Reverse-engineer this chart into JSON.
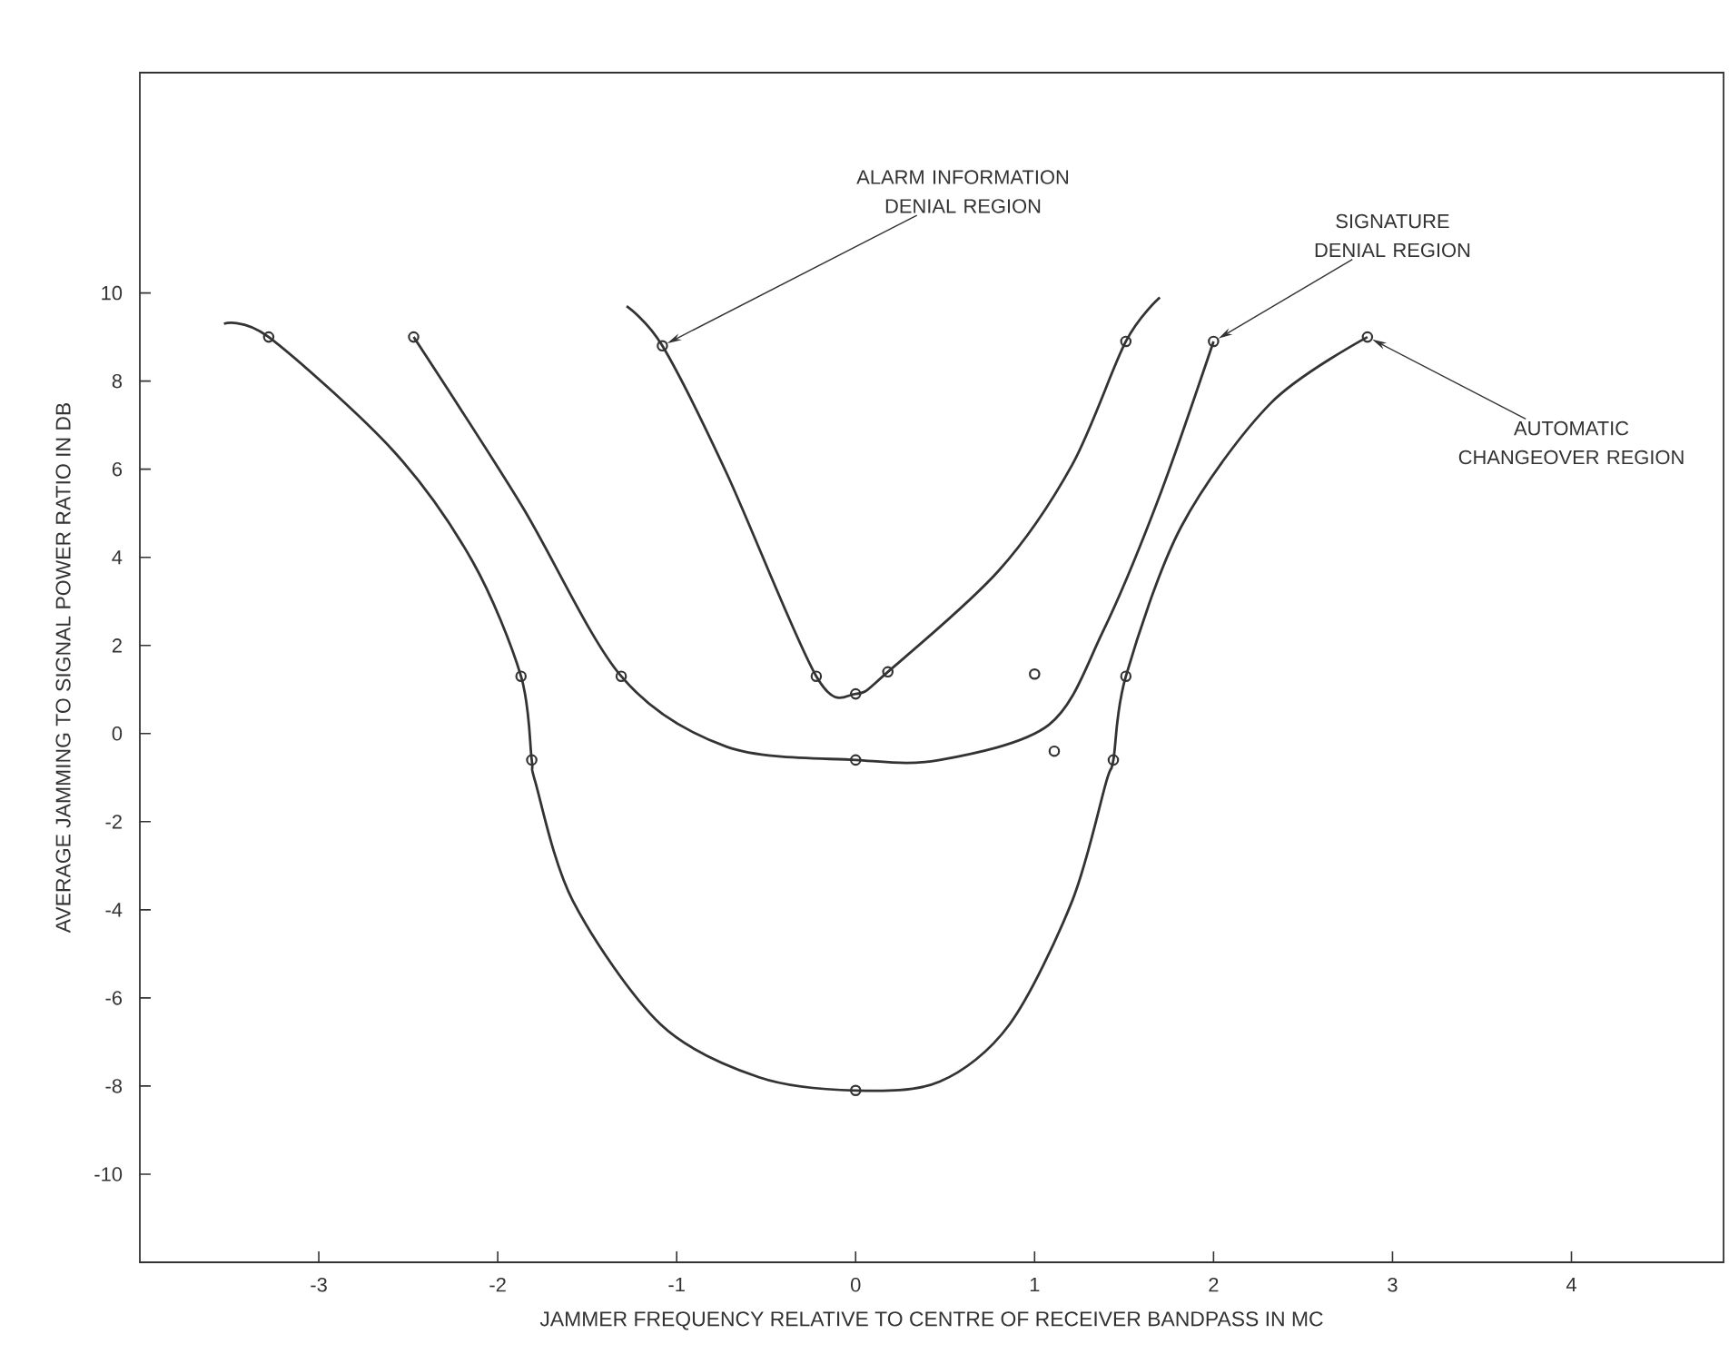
{
  "chart_data": {
    "type": "line",
    "xlabel": "JAMMER FREQUENCY RELATIVE TO CENTRE OF RECEIVER BANDPASS IN MC",
    "ylabel": "AVERAGE JAMMING TO SIGNAL POWER RATIO IN DB",
    "xlim": [
      -4,
      4.85
    ],
    "ylim": [
      -12,
      15
    ],
    "xticks": [
      -3,
      -2,
      -1,
      0,
      1,
      2,
      3,
      4
    ],
    "yticks": [
      -10,
      -8,
      -6,
      -4,
      -2,
      0,
      2,
      4,
      6,
      8,
      10
    ],
    "series": [
      {
        "color": "#333333",
        "marker": "none",
        "x": [
          -1.28,
          -1.08,
          -0.72,
          -0.22,
          0,
          0.18,
          0.8,
          1.21,
          1.51,
          1.7
        ],
        "values": [
          9.7,
          8.8,
          5.9,
          1.3,
          0.9,
          1.4,
          3.7,
          6.1,
          8.9,
          9.9
        ]
      },
      {
        "color": "#333333",
        "marker": "none",
        "x": [
          -2.47,
          -1.87,
          -1.31,
          -0.72,
          0,
          0.47,
          1.08,
          1.38,
          1.69,
          2.0
        ],
        "values": [
          9.0,
          5.2,
          1.3,
          -0.3,
          -0.6,
          -0.6,
          0.2,
          2.3,
          5.3,
          8.9
        ]
      },
      {
        "color": "#333333",
        "marker": "none",
        "x": [
          -3.53,
          -3.28,
          -2.58,
          -2.14,
          -1.87,
          -1.81,
          -1.79,
          -1.58,
          -1.09,
          -0.54,
          0,
          0.47,
          0.86,
          1.21,
          1.4,
          1.44,
          1.51,
          1.82,
          2.32,
          2.86
        ],
        "values": [
          9.3,
          9.0,
          6.4,
          3.9,
          1.3,
          -0.6,
          -1.1,
          -3.8,
          -6.6,
          -7.8,
          -8.1,
          -7.9,
          -6.6,
          -3.8,
          -1.1,
          -0.6,
          1.3,
          4.7,
          7.5,
          9.0
        ]
      },
      {
        "type": "scatter",
        "color": "#333333",
        "marker": "circle",
        "x": [
          -3.28,
          -2.47,
          -1.08,
          -1.87,
          -1.31,
          -0.22,
          0,
          0.18,
          1.0,
          1.51,
          -1.81,
          0,
          1.11,
          1.44,
          0,
          1.51,
          2.0,
          2.86
        ],
        "values": [
          9.0,
          9.0,
          8.8,
          1.3,
          1.3,
          1.3,
          0.9,
          1.4,
          1.35,
          1.3,
          -0.6,
          -0.6,
          -0.4,
          -0.6,
          -8.1,
          8.9,
          8.9,
          9.0
        ]
      }
    ],
    "annotations": [
      {
        "text": "ALARM INFORMATION DENIAL REGION",
        "x": -1.08,
        "y": 8.8
      },
      {
        "text": "SIGNATURE DENIAL REGION",
        "x": 2.0,
        "y": 8.9
      },
      {
        "text": "AUTOMATIC CHANGEOVER REGION",
        "x": 2.86,
        "y": 9.0
      }
    ]
  }
}
